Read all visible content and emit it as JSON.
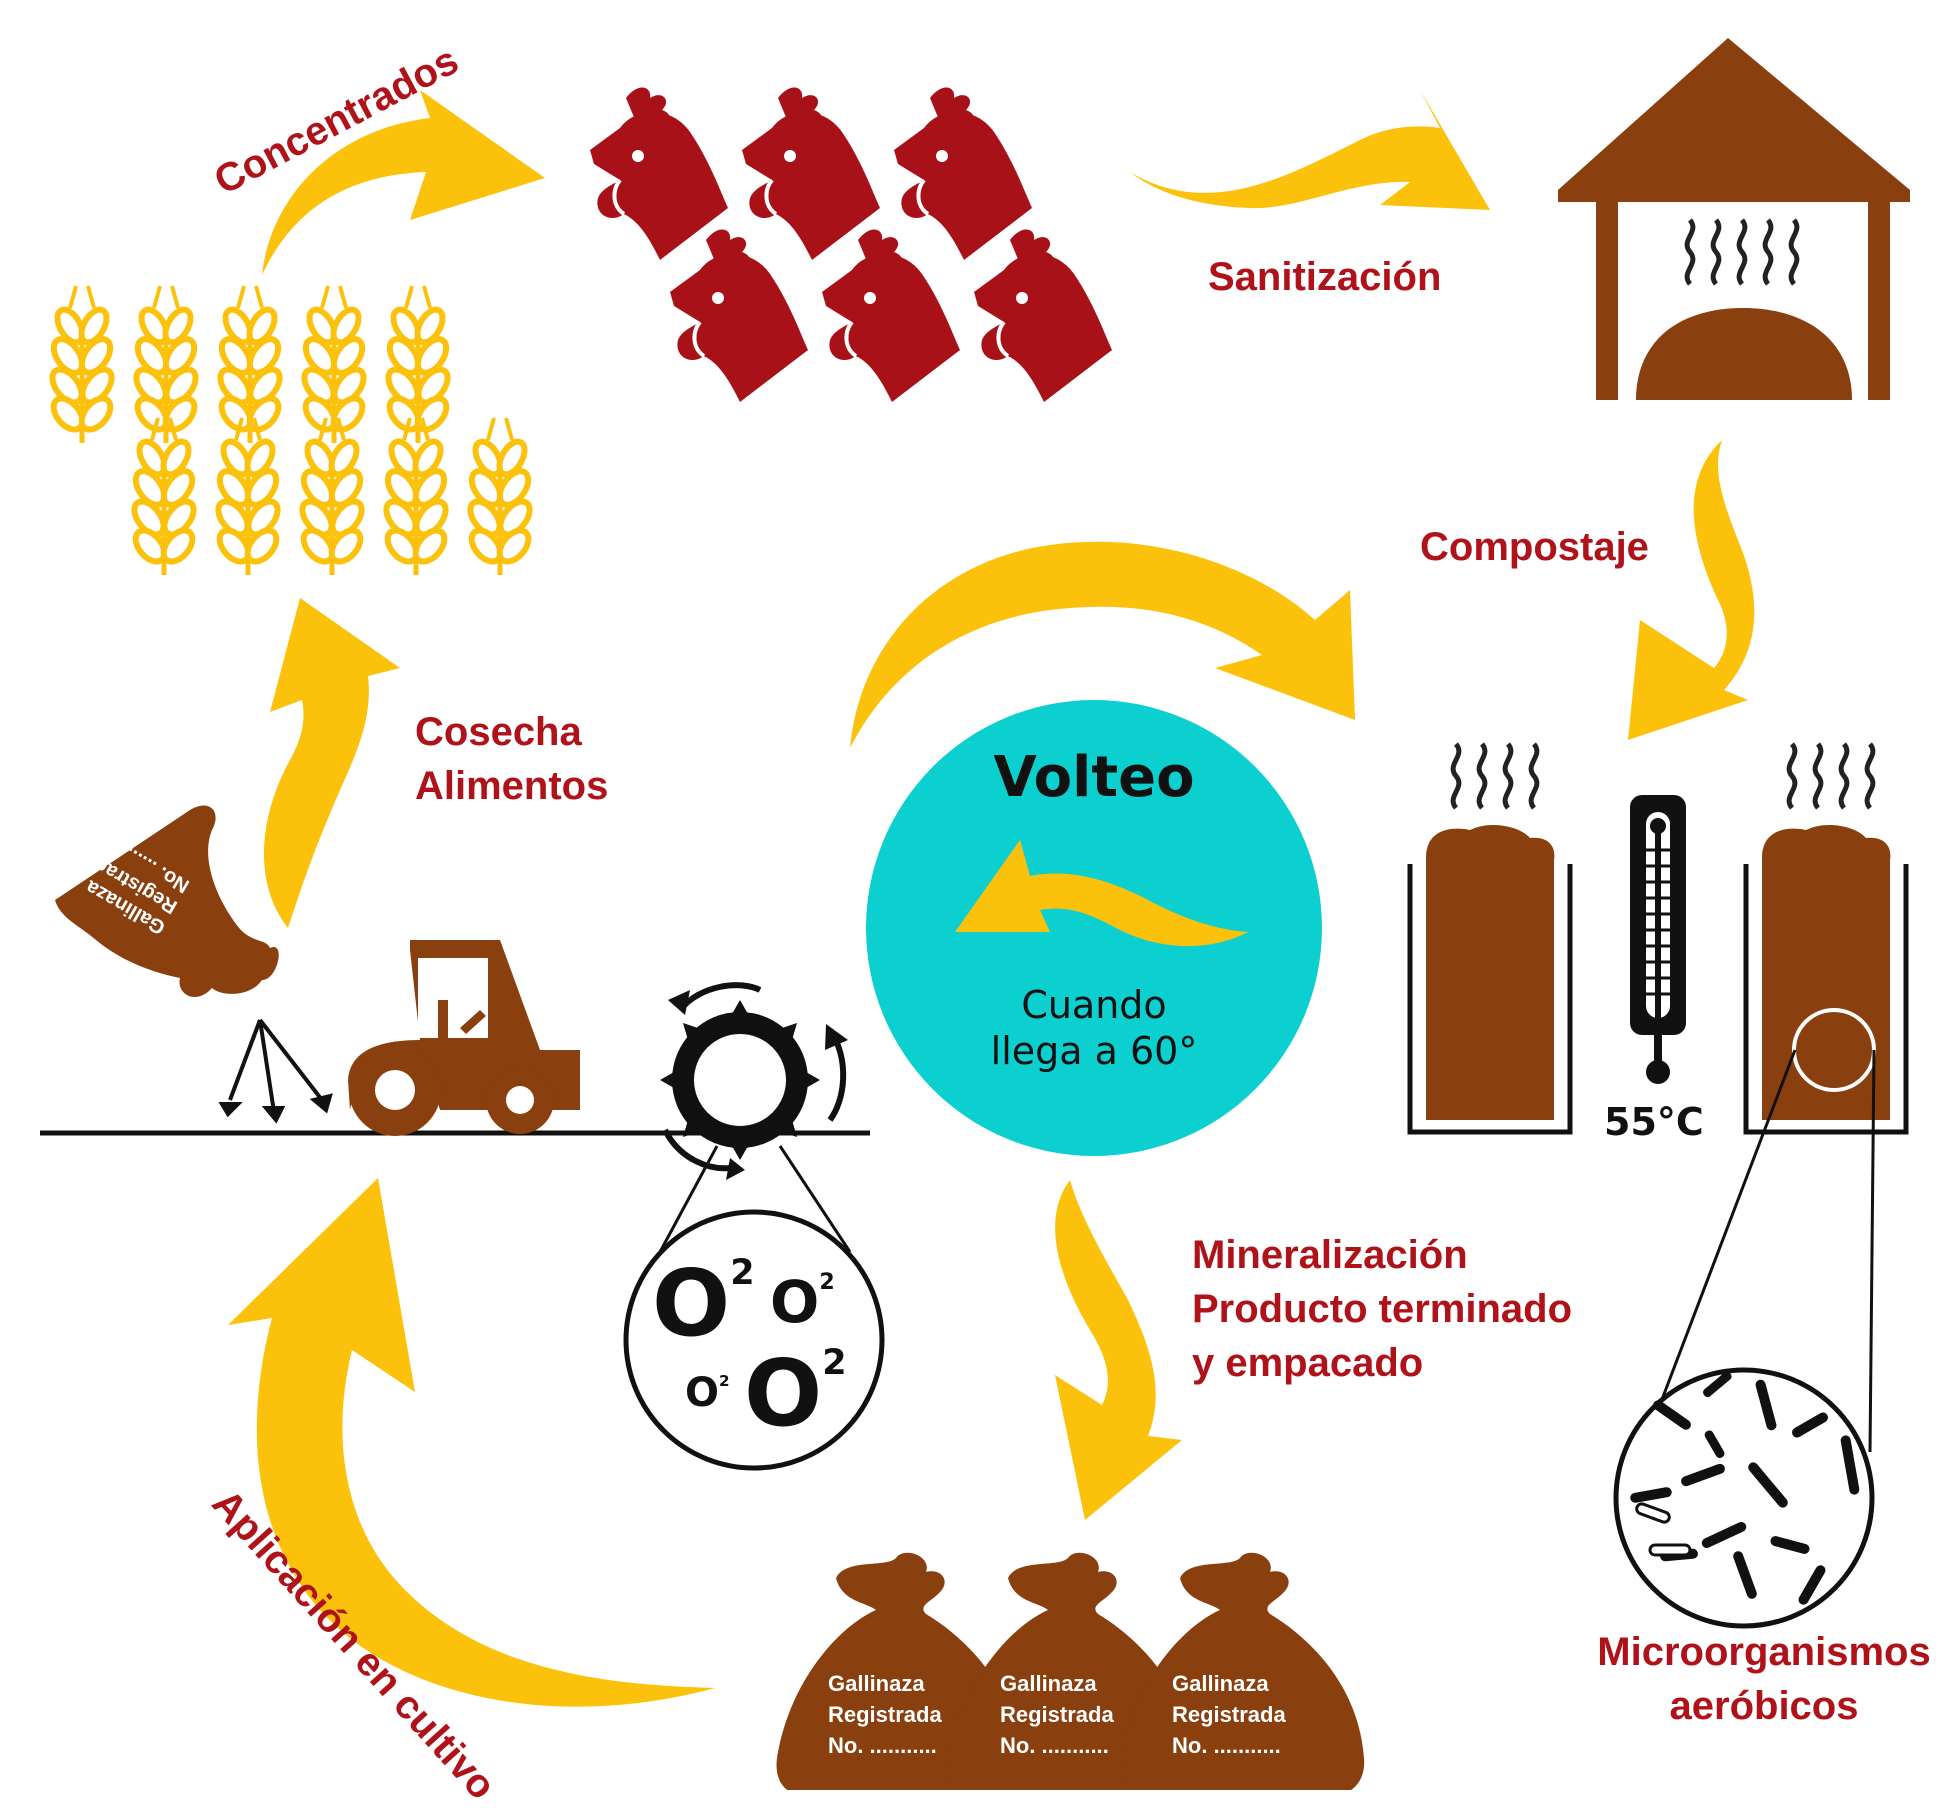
{
  "colors": {
    "arrow": "#fbc10b",
    "label": "#b0121a",
    "chicken": "#a91119",
    "brown": "#8a3f0f",
    "circle": "#0ccfcf",
    "wheat": "#fbc10b"
  },
  "labels": {
    "concentrados": "Concentrados",
    "sanitizacion": "Sanitización",
    "compostaje": "Compostaje",
    "cosecha_line1": "Cosecha",
    "cosecha_line2": "Alimentos",
    "mineralizacion_line1": "Mineralización",
    "mineralizacion_line2": "Producto terminado",
    "mineralizacion_line3": "y empacado",
    "microorganismos_line1": "Microorganismos",
    "microorganismos_line2": "aeróbicos",
    "aplicacion": "Aplicación en cultivo"
  },
  "center": {
    "title": "Volteo",
    "sub_line1": "Cuando",
    "sub_line2": "llega a 60°"
  },
  "temperature": "55°C",
  "bag": {
    "line1": "Gallinaza",
    "line2": "Registrada",
    "line3": "No. ..........."
  },
  "oxygen": {
    "symbol": "O",
    "subscript": "2"
  },
  "icons": [
    "wheat-icon",
    "chicken-icon",
    "compost-house-icon",
    "thermometer-icon",
    "compost-bin-icon",
    "microscope-view-icon",
    "fertilizer-bag-icon",
    "tractor-icon",
    "aerator-wheel-icon",
    "oxygen-magnifier-icon"
  ]
}
